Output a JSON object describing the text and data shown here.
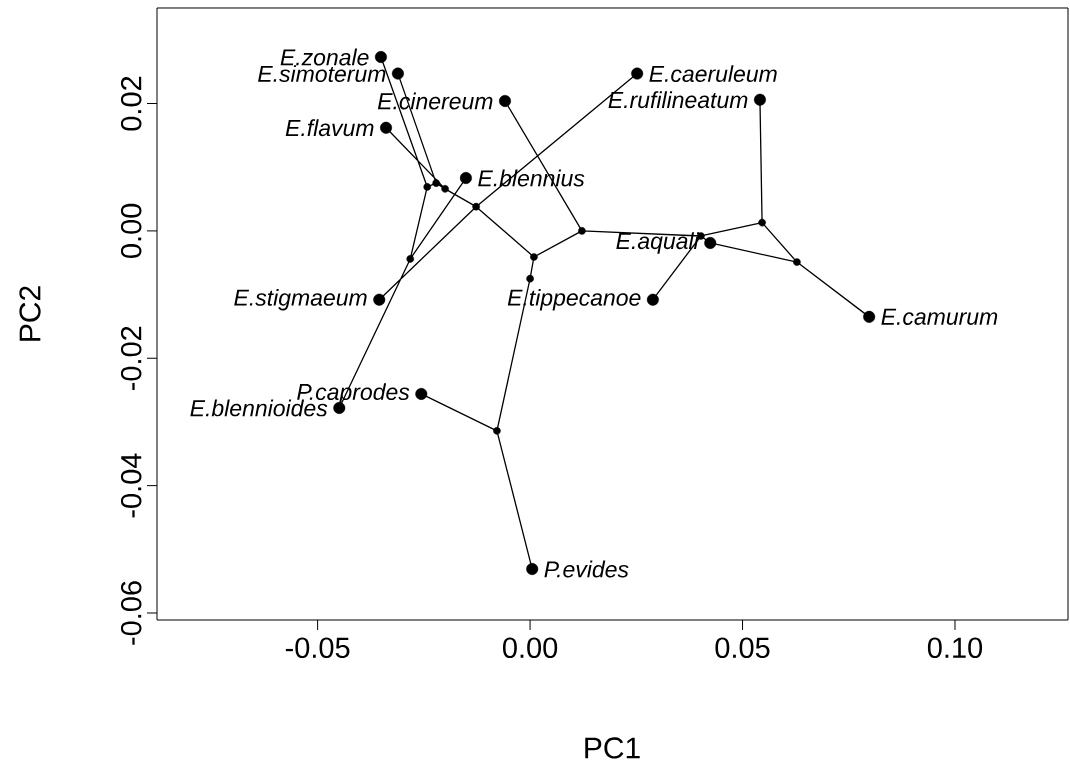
{
  "chart_data": {
    "type": "scatter",
    "xlabel": "PC1",
    "ylabel": "PC2",
    "xlim": [
      -0.0878,
      0.1266
    ],
    "ylim": [
      -0.0611,
      0.035
    ],
    "xticks": [
      {
        "value": -0.05,
        "label": "-0.05"
      },
      {
        "value": 0,
        "label": "0.00"
      },
      {
        "value": 0.05,
        "label": "0.05"
      },
      {
        "value": 0.1,
        "label": "0.10"
      }
    ],
    "yticks": [
      {
        "value": -0.06,
        "label": "-0.06"
      },
      {
        "value": -0.04,
        "label": "-0.04"
      },
      {
        "value": -0.02,
        "label": "-0.02"
      },
      {
        "value": 0,
        "label": "0.00"
      },
      {
        "value": 0.02,
        "label": "0.02"
      }
    ],
    "grid": false,
    "series": [
      {
        "type": "line",
        "color": "#000000",
        "marker": "none",
        "x": [
          -0.0351,
          -0.0242,
          -0.0282,
          -0.0449,
          null,
          -0.0311,
          -0.0221,
          -0.0242,
          null,
          -0.0339,
          -0.02,
          -0.0127,
          0.0009,
          0.0,
          -0.0078,
          0.0005,
          null,
          -0.0221,
          -0.02,
          null,
          -0.0151,
          -0.0282,
          null,
          -0.0355,
          -0.0127,
          0.0252,
          null,
          -0.0256,
          -0.0078,
          null,
          0.0009,
          0.0122,
          0.0402,
          0.0546,
          0.0541,
          null,
          -0.0059,
          0.0122,
          null,
          0.0289,
          0.0402,
          0.0424,
          0.0628,
          0.0798,
          null,
          0.0546,
          0.0628
        ],
        "values": [
          0.0273,
          0.0069,
          -0.0044,
          -0.0278,
          null,
          0.0247,
          0.0075,
          0.0069,
          null,
          0.0162,
          0.0066,
          0.0038,
          -0.0041,
          -0.0075,
          -0.0314,
          -0.0531,
          null,
          0.0075,
          0.0066,
          null,
          0.0083,
          -0.0044,
          null,
          -0.0108,
          0.0038,
          0.0247,
          null,
          -0.0256,
          -0.0314,
          null,
          -0.0041,
          0.0,
          -0.0008,
          0.0013,
          0.0206,
          null,
          0.0204,
          0.0,
          null,
          -0.0108,
          -0.0008,
          -0.0019,
          -0.0049,
          -0.0135,
          null,
          0.0013,
          -0.0049
        ]
      },
      {
        "color": "#000000",
        "marker": "circle",
        "x": [
          -0.0242,
          -0.0221,
          -0.02,
          -0.0127,
          -0.0282,
          0.0009,
          0.0,
          0.0122,
          0.0546,
          0.0628,
          0.0402,
          -0.0078
        ],
        "values": [
          0.0069,
          0.0075,
          0.0066,
          0.0038,
          -0.0044,
          -0.0041,
          -0.0075,
          0.0,
          0.0013,
          -0.0049,
          -0.0008,
          -0.0314
        ]
      },
      {
        "color": "#000000",
        "marker": "circle",
        "x": [
          -0.0351,
          -0.0311,
          -0.0059,
          0.0252,
          0.0541,
          -0.0339,
          -0.0151,
          0.0424,
          -0.0355,
          0.0289,
          0.0798,
          -0.0256,
          -0.0449,
          0.0005
        ],
        "values": [
          0.0273,
          0.0247,
          0.0204,
          0.0247,
          0.0206,
          0.0162,
          0.0083,
          -0.0019,
          -0.0108,
          -0.0108,
          -0.0135,
          -0.0256,
          -0.0278,
          -0.0531
        ]
      }
    ],
    "annotations": [
      {
        "text": "E.zonale",
        "x": -0.0351,
        "y": 0.0273
      },
      {
        "text": "E.simoterum",
        "x": -0.0311,
        "y": 0.0247
      },
      {
        "text": "E.cinereum",
        "x": -0.0059,
        "y": 0.0204
      },
      {
        "text": "E.caeruleum",
        "x": 0.0252,
        "y": 0.0247
      },
      {
        "text": "E.rufilineatum",
        "x": 0.0541,
        "y": 0.0206
      },
      {
        "text": "E.flavum",
        "x": -0.0339,
        "y": 0.0162
      },
      {
        "text": "E.blennius",
        "x": -0.0151,
        "y": 0.0083
      },
      {
        "text": "E.aquali",
        "x": 0.0424,
        "y": -0.0019
      },
      {
        "text": "E.stigmaeum",
        "x": -0.0355,
        "y": -0.0108
      },
      {
        "text": "E.tippecanoe",
        "x": 0.0289,
        "y": -0.0108
      },
      {
        "text": "E.camurum",
        "x": 0.0798,
        "y": -0.0135
      },
      {
        "text": "P.caprodes",
        "x": -0.0256,
        "y": -0.0256
      },
      {
        "text": "E.blennioides",
        "x": -0.0449,
        "y": -0.0278
      },
      {
        "text": "P.evides",
        "x": 0.0005,
        "y": -0.0531
      }
    ]
  }
}
